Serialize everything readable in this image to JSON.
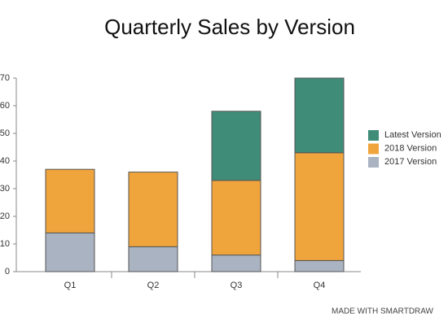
{
  "chart_data": {
    "type": "stacked-bar",
    "title": "Quarterly Sales by Version",
    "categories": [
      "Q1",
      "Q2",
      "Q3",
      "Q4"
    ],
    "series": [
      {
        "name": "2017 Version",
        "color": "#a9b3c1",
        "values": [
          14,
          9,
          6,
          4
        ]
      },
      {
        "name": "2018 Version",
        "color": "#f0a43c",
        "values": [
          23,
          27,
          27,
          39
        ]
      },
      {
        "name": "Latest Version",
        "color": "#3f8c79",
        "values": [
          null,
          null,
          25,
          27
        ]
      }
    ],
    "ylim": [
      0,
      70
    ],
    "yticks": [
      0,
      10,
      20,
      30,
      40,
      50,
      60,
      70
    ],
    "grid": false,
    "legend": "right"
  },
  "footer": "MADE WITH SMARTDRAW"
}
